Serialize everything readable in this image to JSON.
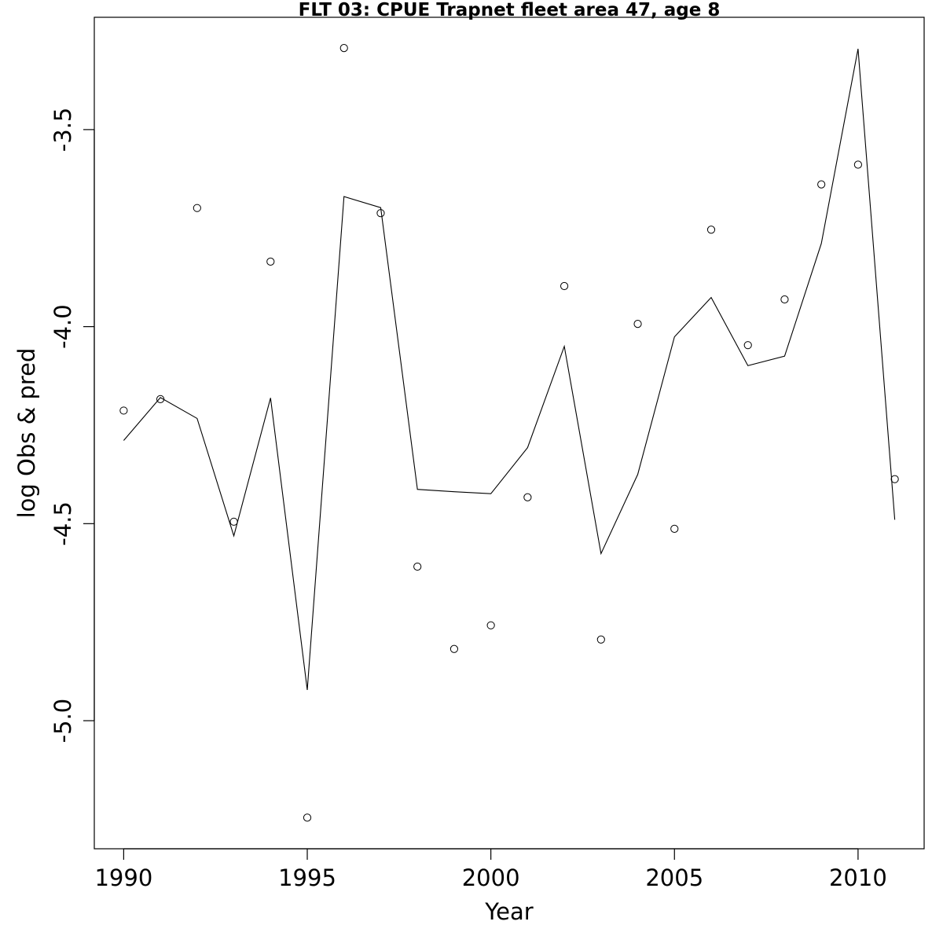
{
  "chart_data": {
    "type": "line",
    "title": "FLT 03: CPUE Trapnet fleet area 47, age 8",
    "xlabel": "Year",
    "ylabel": "log Obs & pred",
    "xlim": [
      1989.2,
      2011.8
    ],
    "ylim": [
      -5.325,
      -3.215
    ],
    "x_ticks": [
      1990,
      1995,
      2000,
      2005,
      2010
    ],
    "x_tick_labels": [
      "1990",
      "1995",
      "2000",
      "2005",
      "2010"
    ],
    "y_ticks": [
      -3.5,
      -4.0,
      -4.5,
      -5.0
    ],
    "y_tick_labels": [
      "-3.5",
      "-4.0",
      "-4.5",
      "-5.0"
    ],
    "grid": false,
    "legend": "none",
    "series": [
      {
        "kind": "points",
        "marker": "open-circle",
        "x": [
          1990,
          1991,
          1992,
          1993,
          1994,
          1995,
          1996,
          1997,
          1998,
          1999,
          2000,
          2001,
          2002,
          2003,
          2004,
          2005,
          2006,
          2007,
          2008,
          2009,
          2010,
          2011
        ],
        "values": [
          -4.213,
          -4.184,
          -3.699,
          -4.495,
          -3.835,
          -5.246,
          -3.293,
          -3.712,
          -4.609,
          -4.818,
          -4.758,
          -4.433,
          -3.897,
          -4.794,
          -3.993,
          -4.513,
          -3.754,
          -4.047,
          -3.931,
          -3.639,
          -3.589,
          -4.387
        ]
      },
      {
        "kind": "line",
        "x": [
          1990,
          1991,
          1992,
          1993,
          1994,
          1995,
          1996,
          1997,
          1998,
          1999,
          2000,
          2001,
          2002,
          2003,
          2004,
          2005,
          2006,
          2007,
          2008,
          2009,
          2010,
          2011
        ],
        "values": [
          -4.289,
          -4.18,
          -4.233,
          -4.531,
          -4.181,
          -4.922,
          -3.67,
          -3.698,
          -4.413,
          -4.419,
          -4.424,
          -4.307,
          -4.05,
          -4.576,
          -4.375,
          -4.026,
          -3.926,
          -4.099,
          -4.075,
          -3.789,
          -3.295,
          -4.49
        ]
      }
    ]
  }
}
